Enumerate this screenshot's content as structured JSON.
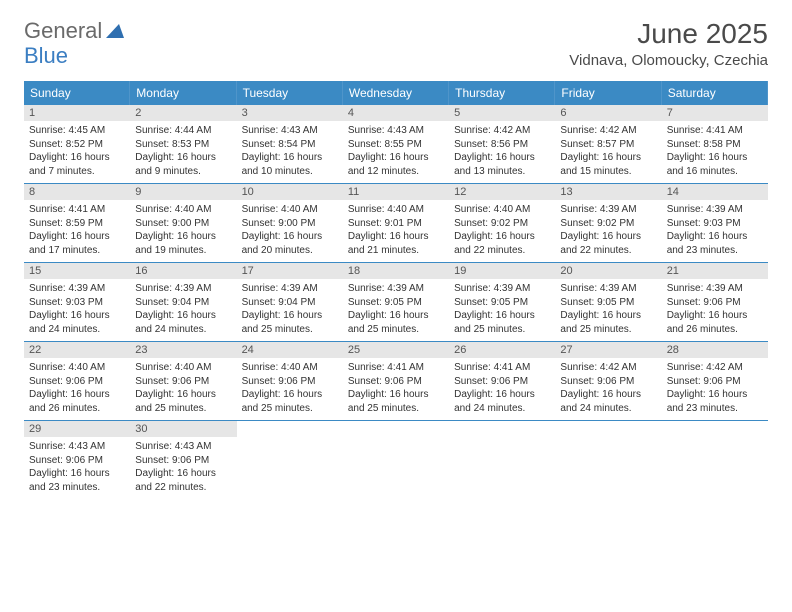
{
  "logo": {
    "part1": "General",
    "part2": "Blue"
  },
  "title": "June 2025",
  "location": "Vidnava, Olomoucky, Czechia",
  "colors": {
    "header_bg": "#3b8ac4",
    "header_fg": "#ffffff",
    "daynum_bg": "#e6e6e6",
    "daynum_fg": "#555555",
    "week_border": "#3b8ac4",
    "body_text": "#333333",
    "logo_gray": "#6a6a6a",
    "logo_blue": "#3b7ec2"
  },
  "typography": {
    "title_fontsize": 28,
    "location_fontsize": 15,
    "dow_fontsize": 12,
    "daynum_fontsize": 11,
    "body_fontsize": 10
  },
  "days_of_week": [
    "Sunday",
    "Monday",
    "Tuesday",
    "Wednesday",
    "Thursday",
    "Friday",
    "Saturday"
  ],
  "weeks": [
    [
      {
        "n": "1",
        "sr": "Sunrise: 4:45 AM",
        "ss": "Sunset: 8:52 PM",
        "dl": "Daylight: 16 hours and 7 minutes."
      },
      {
        "n": "2",
        "sr": "Sunrise: 4:44 AM",
        "ss": "Sunset: 8:53 PM",
        "dl": "Daylight: 16 hours and 9 minutes."
      },
      {
        "n": "3",
        "sr": "Sunrise: 4:43 AM",
        "ss": "Sunset: 8:54 PM",
        "dl": "Daylight: 16 hours and 10 minutes."
      },
      {
        "n": "4",
        "sr": "Sunrise: 4:43 AM",
        "ss": "Sunset: 8:55 PM",
        "dl": "Daylight: 16 hours and 12 minutes."
      },
      {
        "n": "5",
        "sr": "Sunrise: 4:42 AM",
        "ss": "Sunset: 8:56 PM",
        "dl": "Daylight: 16 hours and 13 minutes."
      },
      {
        "n": "6",
        "sr": "Sunrise: 4:42 AM",
        "ss": "Sunset: 8:57 PM",
        "dl": "Daylight: 16 hours and 15 minutes."
      },
      {
        "n": "7",
        "sr": "Sunrise: 4:41 AM",
        "ss": "Sunset: 8:58 PM",
        "dl": "Daylight: 16 hours and 16 minutes."
      }
    ],
    [
      {
        "n": "8",
        "sr": "Sunrise: 4:41 AM",
        "ss": "Sunset: 8:59 PM",
        "dl": "Daylight: 16 hours and 17 minutes."
      },
      {
        "n": "9",
        "sr": "Sunrise: 4:40 AM",
        "ss": "Sunset: 9:00 PM",
        "dl": "Daylight: 16 hours and 19 minutes."
      },
      {
        "n": "10",
        "sr": "Sunrise: 4:40 AM",
        "ss": "Sunset: 9:00 PM",
        "dl": "Daylight: 16 hours and 20 minutes."
      },
      {
        "n": "11",
        "sr": "Sunrise: 4:40 AM",
        "ss": "Sunset: 9:01 PM",
        "dl": "Daylight: 16 hours and 21 minutes."
      },
      {
        "n": "12",
        "sr": "Sunrise: 4:40 AM",
        "ss": "Sunset: 9:02 PM",
        "dl": "Daylight: 16 hours and 22 minutes."
      },
      {
        "n": "13",
        "sr": "Sunrise: 4:39 AM",
        "ss": "Sunset: 9:02 PM",
        "dl": "Daylight: 16 hours and 22 minutes."
      },
      {
        "n": "14",
        "sr": "Sunrise: 4:39 AM",
        "ss": "Sunset: 9:03 PM",
        "dl": "Daylight: 16 hours and 23 minutes."
      }
    ],
    [
      {
        "n": "15",
        "sr": "Sunrise: 4:39 AM",
        "ss": "Sunset: 9:03 PM",
        "dl": "Daylight: 16 hours and 24 minutes."
      },
      {
        "n": "16",
        "sr": "Sunrise: 4:39 AM",
        "ss": "Sunset: 9:04 PM",
        "dl": "Daylight: 16 hours and 24 minutes."
      },
      {
        "n": "17",
        "sr": "Sunrise: 4:39 AM",
        "ss": "Sunset: 9:04 PM",
        "dl": "Daylight: 16 hours and 25 minutes."
      },
      {
        "n": "18",
        "sr": "Sunrise: 4:39 AM",
        "ss": "Sunset: 9:05 PM",
        "dl": "Daylight: 16 hours and 25 minutes."
      },
      {
        "n": "19",
        "sr": "Sunrise: 4:39 AM",
        "ss": "Sunset: 9:05 PM",
        "dl": "Daylight: 16 hours and 25 minutes."
      },
      {
        "n": "20",
        "sr": "Sunrise: 4:39 AM",
        "ss": "Sunset: 9:05 PM",
        "dl": "Daylight: 16 hours and 25 minutes."
      },
      {
        "n": "21",
        "sr": "Sunrise: 4:39 AM",
        "ss": "Sunset: 9:06 PM",
        "dl": "Daylight: 16 hours and 26 minutes."
      }
    ],
    [
      {
        "n": "22",
        "sr": "Sunrise: 4:40 AM",
        "ss": "Sunset: 9:06 PM",
        "dl": "Daylight: 16 hours and 26 minutes."
      },
      {
        "n": "23",
        "sr": "Sunrise: 4:40 AM",
        "ss": "Sunset: 9:06 PM",
        "dl": "Daylight: 16 hours and 25 minutes."
      },
      {
        "n": "24",
        "sr": "Sunrise: 4:40 AM",
        "ss": "Sunset: 9:06 PM",
        "dl": "Daylight: 16 hours and 25 minutes."
      },
      {
        "n": "25",
        "sr": "Sunrise: 4:41 AM",
        "ss": "Sunset: 9:06 PM",
        "dl": "Daylight: 16 hours and 25 minutes."
      },
      {
        "n": "26",
        "sr": "Sunrise: 4:41 AM",
        "ss": "Sunset: 9:06 PM",
        "dl": "Daylight: 16 hours and 24 minutes."
      },
      {
        "n": "27",
        "sr": "Sunrise: 4:42 AM",
        "ss": "Sunset: 9:06 PM",
        "dl": "Daylight: 16 hours and 24 minutes."
      },
      {
        "n": "28",
        "sr": "Sunrise: 4:42 AM",
        "ss": "Sunset: 9:06 PM",
        "dl": "Daylight: 16 hours and 23 minutes."
      }
    ],
    [
      {
        "n": "29",
        "sr": "Sunrise: 4:43 AM",
        "ss": "Sunset: 9:06 PM",
        "dl": "Daylight: 16 hours and 23 minutes."
      },
      {
        "n": "30",
        "sr": "Sunrise: 4:43 AM",
        "ss": "Sunset: 9:06 PM",
        "dl": "Daylight: 16 hours and 22 minutes."
      },
      {
        "empty": true
      },
      {
        "empty": true
      },
      {
        "empty": true
      },
      {
        "empty": true
      },
      {
        "empty": true
      }
    ]
  ]
}
